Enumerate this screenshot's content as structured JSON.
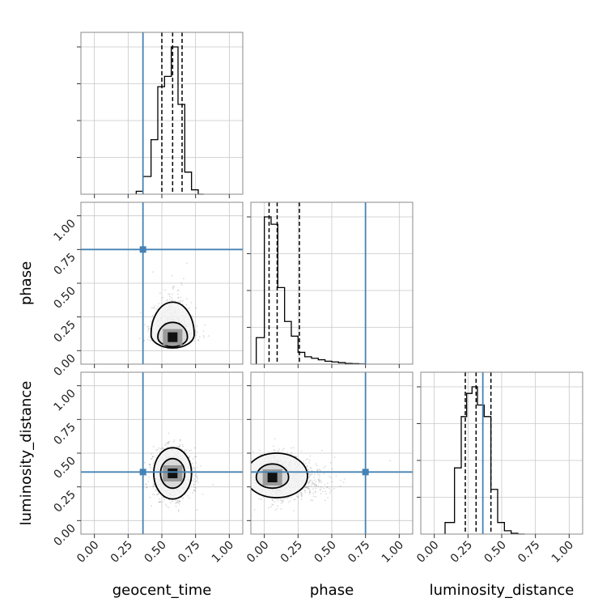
{
  "chart_data": {
    "type": "corner",
    "parameters": [
      "geocent_time",
      "phase",
      "luminosity_distance"
    ],
    "axis_range": [
      -0.1,
      1.1
    ],
    "ticks": [
      0.0,
      0.25,
      0.5,
      0.75,
      1.0
    ],
    "tick_labels": [
      "0.00",
      "0.25",
      "0.50",
      "0.75",
      "1.00"
    ],
    "grid": true,
    "truth_color": "#4682b4",
    "truths": {
      "geocent_time": 0.36,
      "phase": 0.75,
      "luminosity_distance": 0.36
    },
    "histograms": [
      {
        "parameter": "geocent_time",
        "bin_edges": [
          0.31,
          0.36,
          0.42,
          0.47,
          0.52,
          0.57,
          0.62,
          0.67,
          0.72,
          0.77,
          0.81
        ],
        "values": [
          0.02,
          0.12,
          0.37,
          0.73,
          0.8,
          1.0,
          0.61,
          0.15,
          0.03,
          0.0
        ],
        "quantiles": [
          0.5,
          0.58,
          0.65
        ]
      },
      {
        "parameter": "phase",
        "bin_edges": [
          -0.06,
          0.0,
          0.05,
          0.1,
          0.15,
          0.2,
          0.25,
          0.3,
          0.35,
          0.4,
          0.45,
          0.5,
          0.55,
          0.6,
          0.65,
          0.7,
          0.75
        ],
        "values": [
          0.18,
          1.0,
          0.95,
          0.52,
          0.29,
          0.19,
          0.08,
          0.05,
          0.04,
          0.03,
          0.02,
          0.015,
          0.01,
          0.005,
          0.003,
          0.001
        ],
        "quantiles": [
          0.035,
          0.095,
          0.26
        ]
      },
      {
        "parameter": "luminosity_distance",
        "bin_edges": [
          0.08,
          0.15,
          0.2,
          0.24,
          0.28,
          0.32,
          0.37,
          0.42,
          0.47,
          0.52,
          0.57,
          0.62,
          0.67
        ],
        "values": [
          0.07,
          0.4,
          0.71,
          0.85,
          0.89,
          0.78,
          0.71,
          0.27,
          0.07,
          0.02,
          0.005,
          0.0
        ],
        "quantiles": [
          0.23,
          0.31,
          0.42
        ]
      }
    ],
    "joint_panels": [
      {
        "x": "geocent_time",
        "y": "phase",
        "density_center": [
          0.58,
          0.11
        ],
        "density_spread": [
          0.07,
          0.09
        ],
        "contours": [
          {
            "center": [
              0.58,
              0.1
            ],
            "rx": 0.11,
            "ry_up": 0.11,
            "ry_down": 0.07
          },
          {
            "center": [
              0.58,
              0.12
            ],
            "rx": 0.16,
            "ry_up": 0.24,
            "ry_down": 0.1
          }
        ],
        "truth": [
          0.36,
          0.75
        ]
      },
      {
        "x": "geocent_time",
        "y": "luminosity_distance",
        "density_center": [
          0.58,
          0.35
        ],
        "density_spread": [
          0.07,
          0.09
        ],
        "contours": [
          {
            "center": [
              0.58,
              0.35
            ],
            "rx": 0.09,
            "ry_up": 0.11,
            "ry_down": 0.11
          },
          {
            "center": [
              0.58,
              0.35
            ],
            "rx": 0.14,
            "ry_up": 0.19,
            "ry_down": 0.19
          }
        ],
        "truth": [
          0.36,
          0.36
        ]
      },
      {
        "x": "phase",
        "y": "luminosity_distance",
        "density_center": [
          0.06,
          0.32
        ],
        "density_spread": [
          0.07,
          0.08
        ],
        "contours": [
          {
            "center": [
              0.06,
              0.32
            ],
            "rx": 0.12,
            "ry_up": 0.1,
            "ry_down": 0.08
          },
          {
            "center": [
              0.09,
              0.33
            ],
            "rx": 0.23,
            "ry_up": 0.17,
            "ry_down": 0.16
          }
        ],
        "truth": [
          0.75,
          0.36
        ]
      }
    ]
  }
}
